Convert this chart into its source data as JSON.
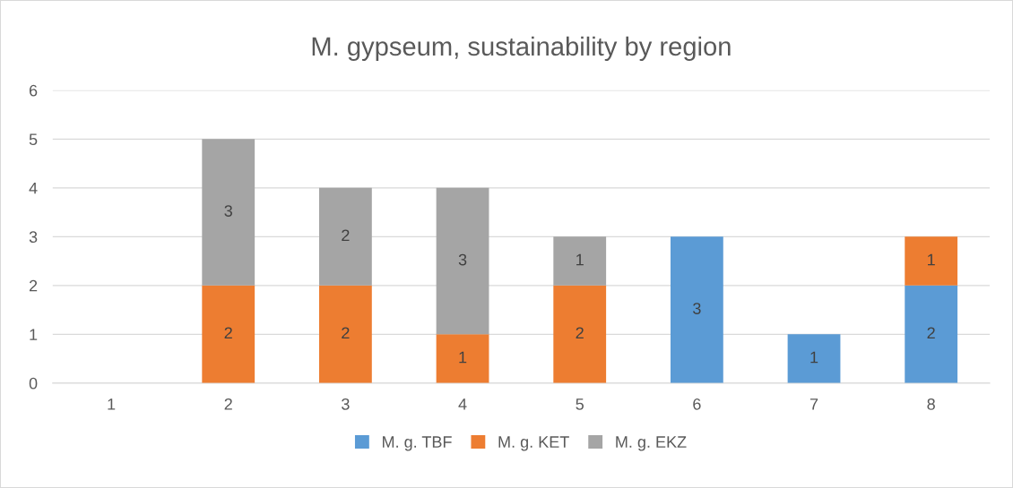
{
  "chart_data": {
    "type": "bar",
    "title": "M. gypseum, sustainability by region",
    "categories": [
      "1",
      "2",
      "3",
      "4",
      "5",
      "6",
      "7",
      "8"
    ],
    "series": [
      {
        "name": "M. g. TBF",
        "color": "#5b9bd5",
        "values": [
          null,
          null,
          null,
          null,
          null,
          3,
          1,
          2
        ]
      },
      {
        "name": "M. g. KET",
        "color": "#ed7d31",
        "values": [
          null,
          2,
          2,
          1,
          2,
          null,
          null,
          1
        ]
      },
      {
        "name": "M. g. EKZ",
        "color": "#a5a5a5",
        "values": [
          null,
          3,
          2,
          3,
          1,
          null,
          null,
          null
        ]
      }
    ],
    "stacked": true,
    "ylim": [
      0,
      6
    ],
    "yticks": [
      0,
      1,
      2,
      3,
      4,
      5,
      6
    ],
    "grid": "y",
    "legend": "bottom",
    "data_labels": true
  }
}
